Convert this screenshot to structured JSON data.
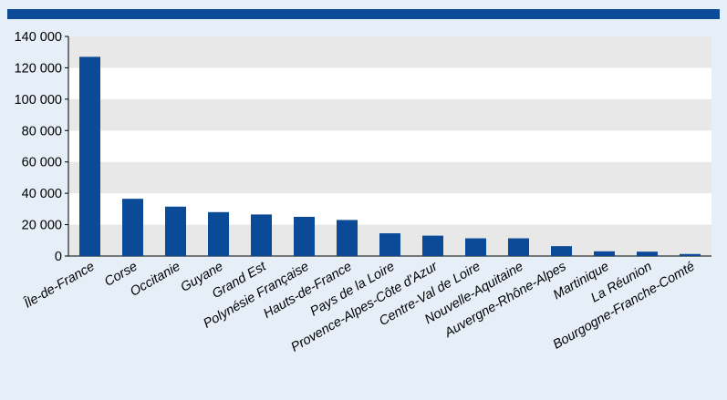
{
  "colors": {
    "background": "#e6eef7",
    "bar": "#0a4a96",
    "top_bar": "#0a4a96",
    "band_light": "#ffffff",
    "band_dark": "#e8e8e8"
  },
  "chart_data": {
    "type": "bar",
    "title": "",
    "xlabel": "",
    "ylabel": "",
    "ylim": [
      0,
      140000
    ],
    "y_ticks": [
      0,
      20000,
      40000,
      60000,
      80000,
      100000,
      120000,
      140000
    ],
    "y_tick_labels": [
      "0",
      "20 000",
      "40 000",
      "60 000",
      "80 000",
      "100 000",
      "120 000",
      "140 000"
    ],
    "grid": "alternating horizontal bands",
    "legend": "none",
    "categories": [
      "Île-de-France",
      "Corse",
      "Occitanie",
      "Guyane",
      "Grand Est",
      "Polynésie Française",
      "Hauts-de-France",
      "Pays de la Loire",
      "Provence-Alpes-Côte d'Azur",
      "Centre-Val de Loire",
      "Nouvelle-Aquitaine",
      "Auvergne-Rhône-Alpes",
      "Martinique",
      "La Réunion",
      "Bourgogne-Franche-Comté"
    ],
    "values": [
      127000,
      36500,
      31500,
      28000,
      26500,
      25000,
      23000,
      14500,
      13000,
      11300,
      11300,
      6300,
      3000,
      2800,
      1300
    ]
  }
}
